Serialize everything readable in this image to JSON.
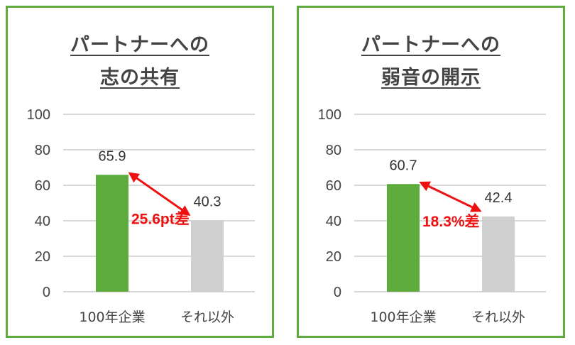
{
  "chart_data": [
    {
      "type": "bar",
      "title_lines": [
        "パートナーへの",
        "志の共有"
      ],
      "categories": [
        "100年企業",
        "それ以外"
      ],
      "values": [
        65.9,
        40.3
      ],
      "value_labels": [
        "65.9",
        "40.3"
      ],
      "ylim": [
        0,
        100
      ],
      "yticks": [
        "0",
        "20",
        "40",
        "60",
        "80",
        "100"
      ],
      "difference_label": "25.6pt差",
      "grid": true,
      "colors": [
        "#5fac3e",
        "#d0d0d0"
      ]
    },
    {
      "type": "bar",
      "title_lines": [
        "パートナーへの",
        "弱音の開示"
      ],
      "categories": [
        "100年企業",
        "それ以外"
      ],
      "values": [
        60.7,
        42.4
      ],
      "value_labels": [
        "60.7",
        "42.4"
      ],
      "ylim": [
        0,
        100
      ],
      "yticks": [
        "0",
        "20",
        "40",
        "60",
        "80",
        "100"
      ],
      "difference_label": "18.3%差",
      "grid": true,
      "colors": [
        "#5fac3e",
        "#d0d0d0"
      ]
    }
  ],
  "colors": {
    "panel_border": "#5fac3e",
    "arrow": "#ee1111",
    "grid": "#d9d9d9"
  }
}
